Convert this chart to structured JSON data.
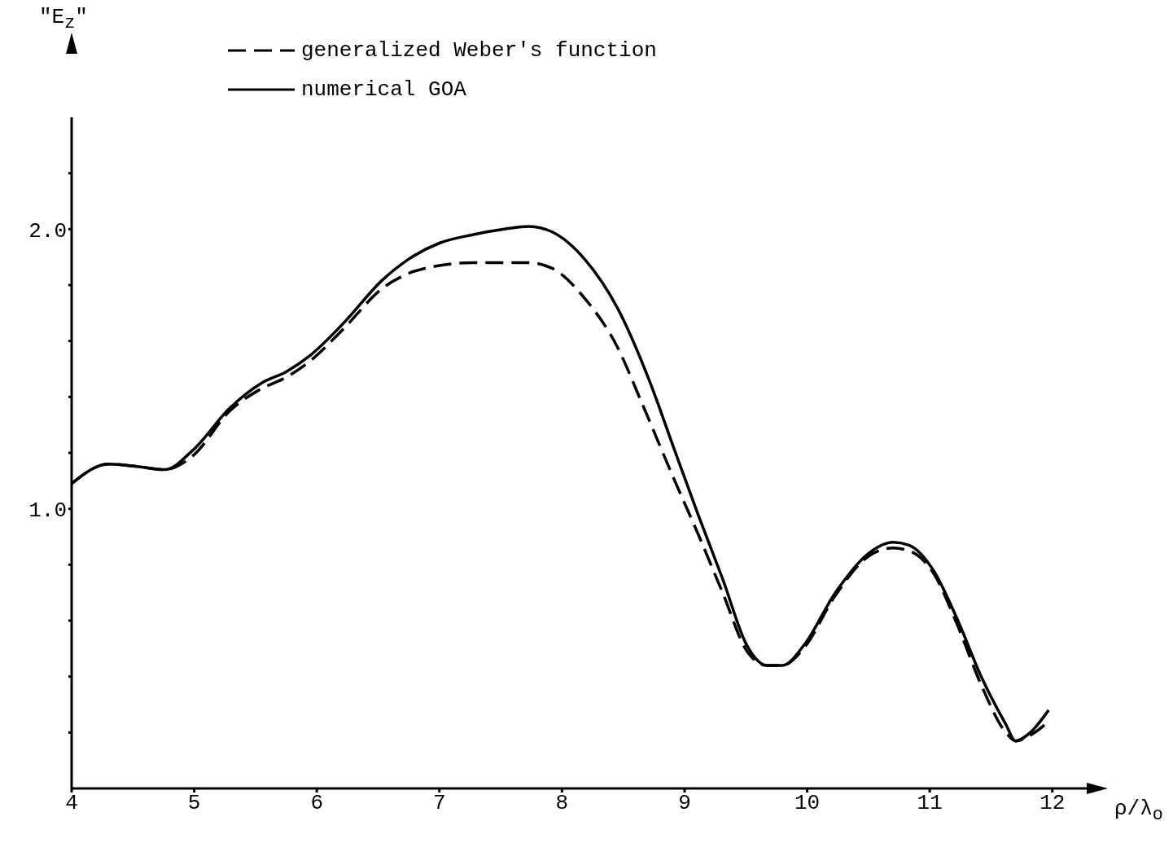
{
  "chart_data": {
    "type": "line",
    "xlabel": "ρ/λ$_{o}$",
    "ylabel": "\"E$_{z}$\"",
    "legend": "top",
    "xlim": [
      4,
      12.4
    ],
    "ylim": [
      0,
      2.4
    ],
    "xticks": [
      4,
      5,
      6,
      7,
      8,
      9,
      10,
      11,
      12
    ],
    "yticks": [
      {
        "value": 0.2,
        "label": null
      },
      {
        "value": 0.4,
        "label": null
      },
      {
        "value": 0.6,
        "label": null
      },
      {
        "value": 0.8,
        "label": null
      },
      {
        "value": 1.0,
        "label": "1.0"
      },
      {
        "value": 1.2,
        "label": null
      },
      {
        "value": 1.4,
        "label": null
      },
      {
        "value": 1.6,
        "label": null
      },
      {
        "value": 1.8,
        "label": null
      },
      {
        "value": 2.0,
        "label": "2.0"
      },
      {
        "value": 2.2,
        "label": null
      }
    ],
    "series": [
      {
        "name": "generalized Weber's function",
        "color": "#000000",
        "line_style": "dashed",
        "x": [
          4.0,
          4.3,
          4.56,
          4.76,
          4.99,
          5.29,
          5.55,
          5.75,
          5.95,
          6.21,
          6.54,
          6.74,
          7.0,
          7.27,
          7.53,
          7.73,
          7.92,
          8.19,
          8.45,
          8.65,
          8.91,
          9.11,
          9.31,
          9.51,
          9.67,
          9.8,
          9.97,
          10.23,
          10.5,
          10.7,
          10.83,
          11.03,
          11.22,
          11.42,
          11.62,
          11.7,
          11.82,
          11.97
        ],
        "values": [
          1.09,
          1.16,
          1.15,
          1.14,
          1.19,
          1.35,
          1.43,
          1.47,
          1.53,
          1.64,
          1.79,
          1.84,
          1.87,
          1.88,
          1.88,
          1.88,
          1.86,
          1.75,
          1.58,
          1.38,
          1.11,
          0.91,
          0.7,
          0.49,
          0.44,
          0.44,
          0.5,
          0.69,
          0.83,
          0.86,
          0.85,
          0.77,
          0.59,
          0.37,
          0.2,
          0.17,
          0.19,
          0.24
        ]
      },
      {
        "name": "numerical GOA",
        "color": "#000000",
        "line_style": "solid",
        "x": [
          4.0,
          4.3,
          4.56,
          4.76,
          4.99,
          5.29,
          5.55,
          5.75,
          5.95,
          6.21,
          6.54,
          6.74,
          7.0,
          7.27,
          7.53,
          7.73,
          7.92,
          8.19,
          8.45,
          8.72,
          8.91,
          9.11,
          9.31,
          9.51,
          9.67,
          9.8,
          9.97,
          10.23,
          10.5,
          10.7,
          10.83,
          11.03,
          11.22,
          11.42,
          11.62,
          11.7,
          11.82,
          11.97
        ],
        "values": [
          1.09,
          1.16,
          1.15,
          1.14,
          1.21,
          1.36,
          1.45,
          1.49,
          1.55,
          1.66,
          1.82,
          1.89,
          1.95,
          1.98,
          2.0,
          2.01,
          1.99,
          1.89,
          1.72,
          1.45,
          1.22,
          0.98,
          0.75,
          0.51,
          0.44,
          0.44,
          0.51,
          0.7,
          0.84,
          0.88,
          0.87,
          0.78,
          0.61,
          0.4,
          0.23,
          0.17,
          0.2,
          0.28
        ]
      }
    ]
  }
}
